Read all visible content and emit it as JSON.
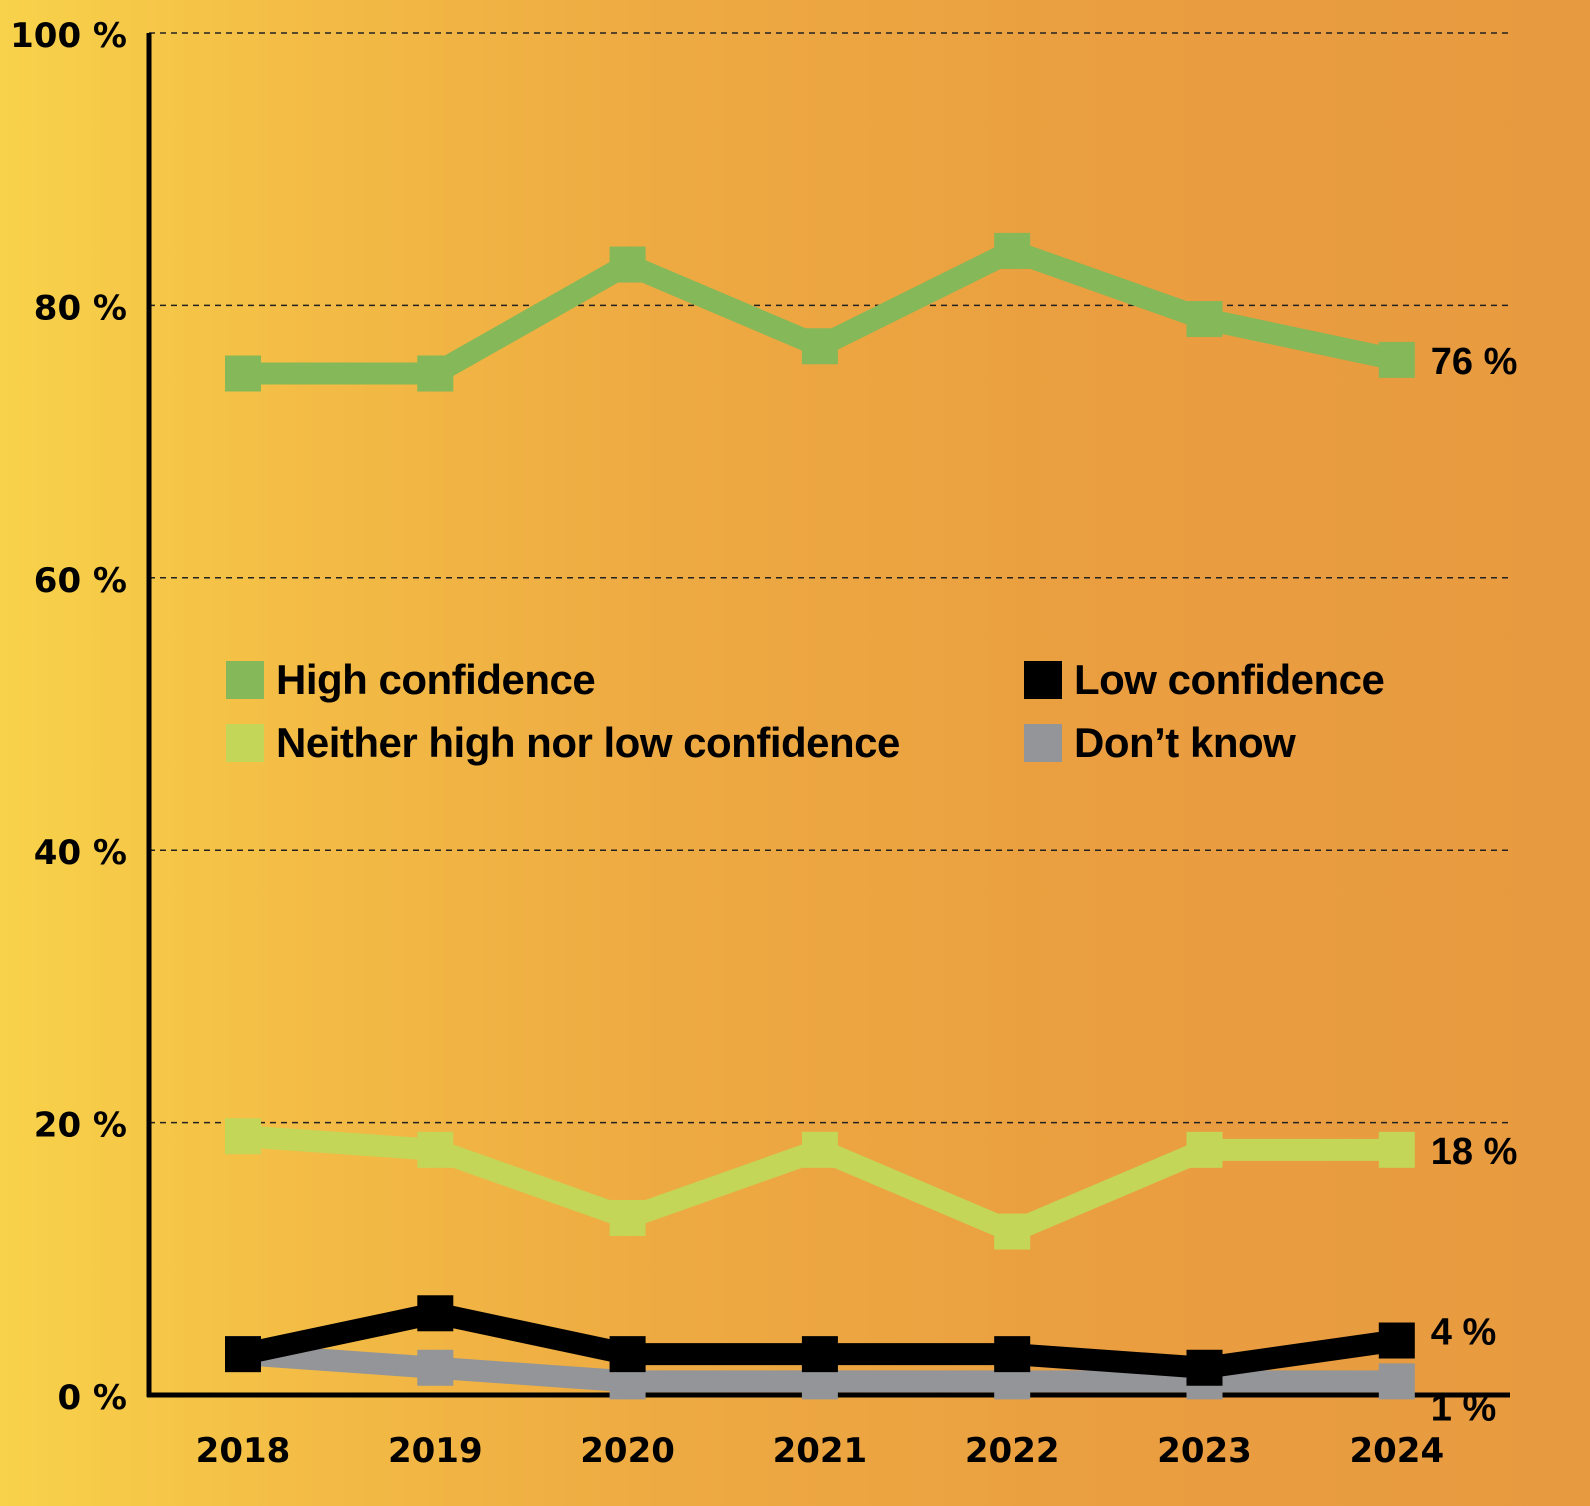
{
  "chart_data": {
    "type": "line",
    "title": "",
    "xlabel": "",
    "ylabel": "",
    "x": [
      "2018",
      "2019",
      "2020",
      "2021",
      "2022",
      "2023",
      "2024"
    ],
    "ylim": [
      0,
      100
    ],
    "yticks": [
      0,
      20,
      40,
      60,
      80,
      100
    ],
    "ytick_labels": [
      "0 %",
      "20 %",
      "40 %",
      "60 %",
      "80 %",
      "100 %"
    ],
    "grid": "horizontal dashed",
    "legend_position": "center",
    "series": [
      {
        "name": "High confidence",
        "color": "#84b858",
        "values": [
          75,
          75,
          83,
          77,
          84,
          79,
          76
        ],
        "end_label": "76 %"
      },
      {
        "name": "Neither high nor low confidence",
        "color": "#c3d657",
        "values": [
          19,
          18,
          13,
          18,
          12,
          18,
          18
        ],
        "end_label": "18 %"
      },
      {
        "name": "Low confidence",
        "color": "#000000",
        "values": [
          3,
          6,
          3,
          3,
          3,
          2,
          4
        ],
        "end_label": "4 %"
      },
      {
        "name": "Don’t know",
        "color": "#939598",
        "values": [
          3,
          2,
          1,
          1,
          1,
          1,
          1
        ],
        "end_label": "1 %"
      }
    ]
  },
  "legend": {
    "items": [
      {
        "label": "High confidence",
        "color": "#84b858"
      },
      {
        "label": "Low confidence",
        "color": "#000000"
      },
      {
        "label": "Neither high nor low confidence",
        "color": "#c3d657"
      },
      {
        "label": "Don’t know",
        "color": "#939598"
      }
    ]
  }
}
